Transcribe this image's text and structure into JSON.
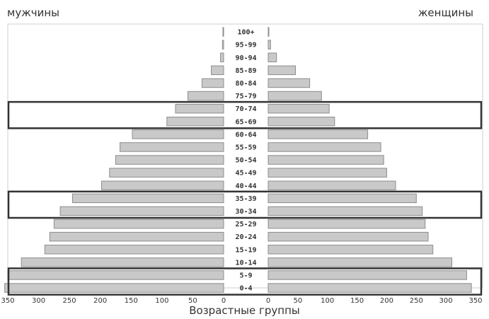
{
  "header": {
    "men_label": "мужчины",
    "women_label": "женщины"
  },
  "chart_data": {
    "type": "bar",
    "orientation": "horizontal-population-pyramid",
    "categories": [
      "100+",
      "95-99",
      "90-94",
      "85-89",
      "80-84",
      "75-79",
      "70-74",
      "65-69",
      "60-64",
      "55-59",
      "50-54",
      "45-49",
      "40-44",
      "35-39",
      "30-34",
      "25-29",
      "20-24",
      "15-19",
      "10-14",
      "5-9",
      "0-4"
    ],
    "series": [
      {
        "name": "мужчины",
        "values": [
          1,
          2,
          5,
          20,
          35,
          58,
          78,
          92,
          148,
          168,
          175,
          185,
          198,
          245,
          265,
          275,
          282,
          290,
          328,
          350,
          355
        ]
      },
      {
        "name": "женщины",
        "values": [
          1,
          4,
          14,
          46,
          70,
          90,
          103,
          112,
          168,
          190,
          195,
          200,
          215,
          250,
          260,
          265,
          270,
          278,
          310,
          335,
          343
        ]
      }
    ],
    "xlabel": "Возрастные группы",
    "x_ticks_left": [
      "350",
      "300",
      "250",
      "200",
      "150",
      "100",
      "50",
      "0"
    ],
    "x_ticks_right": [
      "0",
      "50",
      "100",
      "150",
      "200",
      "250",
      "300",
      "350"
    ],
    "xlim": [
      0,
      350
    ],
    "highlighted_groups": [
      [
        "70-74",
        "65-69"
      ],
      [
        "35-39",
        "30-34"
      ],
      [
        "5-9",
        "0-4"
      ]
    ],
    "colors": {
      "bar": "#c9c9c9",
      "bar_edge": "#8d8d8d",
      "frame": "#333333"
    }
  }
}
